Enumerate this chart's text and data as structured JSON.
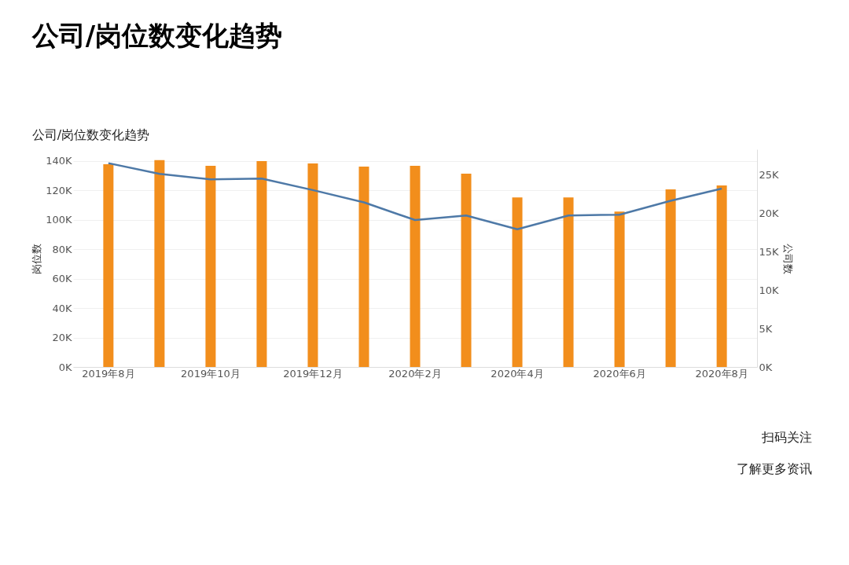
{
  "chart_data": {
    "type": "bar",
    "title": "公司/岗位数变化趋势",
    "subtitle": "公司/岗位数变化趋势",
    "ylabel": "岗位数",
    "y2label": "公司数",
    "categories": [
      "2019年8月",
      null,
      "2019年10月",
      null,
      "2019年12月",
      null,
      "2020年2月",
      null,
      "2020年4月",
      null,
      "2020年6月",
      null,
      "2020年8月"
    ],
    "series": [
      {
        "color": "#f28e1c",
        "values": [
          137900,
          140600,
          136800,
          140000,
          138400,
          136300,
          136800,
          131400,
          115300,
          115300,
          105700,
          120700,
          123400
        ]
      },
      {
        "type": "line",
        "axis": "y2",
        "color": "#4e79a7",
        "values": [
          26500,
          25100,
          24400,
          24500,
          23000,
          21400,
          19100,
          19700,
          17900,
          19700,
          19800,
          21600,
          23200
        ]
      }
    ],
    "ylim": [
      0,
      148000
    ],
    "yticks": [
      {
        "value": 0,
        "label": "0K"
      },
      {
        "value": 20000,
        "label": "20K"
      },
      {
        "value": 40000,
        "label": "40K"
      },
      {
        "value": 60000,
        "label": "60K"
      },
      {
        "value": 80000,
        "label": "80K"
      },
      {
        "value": 100000,
        "label": "100K"
      },
      {
        "value": 120000,
        "label": "120K"
      },
      {
        "value": 140000,
        "label": "140K"
      }
    ],
    "y2lim": [
      0,
      28300
    ],
    "y2ticks": [
      {
        "value": 0,
        "label": "0K"
      },
      {
        "value": 5000,
        "label": "5K"
      },
      {
        "value": 10000,
        "label": "10K"
      },
      {
        "value": 15000,
        "label": "15K"
      },
      {
        "value": 20000,
        "label": "20K"
      },
      {
        "value": 25000,
        "label": "25K"
      }
    ],
    "grid": "y",
    "marker": "none",
    "line_style": "solid",
    "annotations": [
      "扫码关注",
      "了解更多资讯"
    ]
  }
}
